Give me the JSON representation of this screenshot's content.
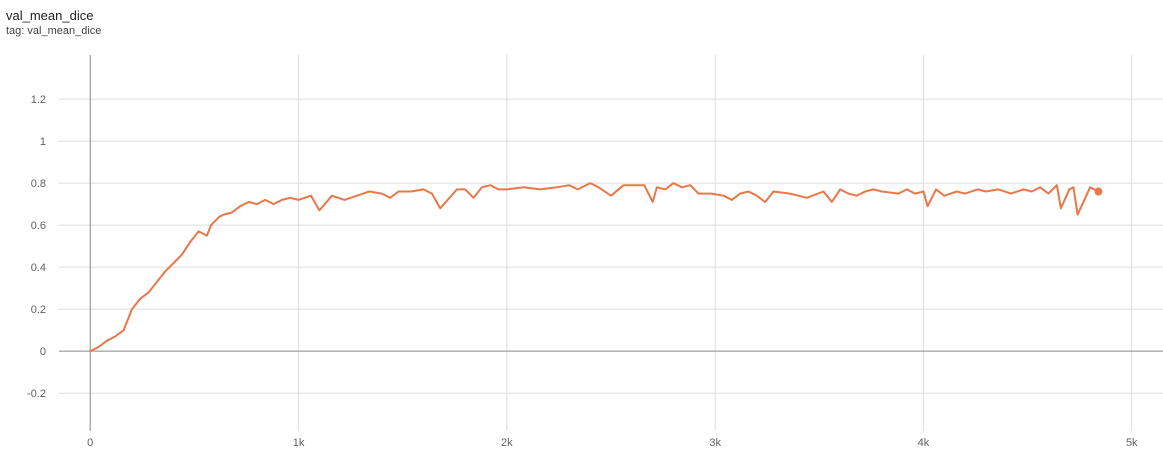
{
  "header": {
    "title": "val_mean_dice",
    "tag": "tag: val_mean_dice"
  },
  "colors": {
    "series": "#e8784a",
    "grid": "#dddddd",
    "zero_axis": "#888888",
    "text": "#616161"
  },
  "chart_data": {
    "type": "line",
    "title": "val_mean_dice",
    "xlabel": "",
    "ylabel": "",
    "xlim": [
      -150,
      5150
    ],
    "ylim": [
      -0.38,
      1.41
    ],
    "x_ticks": [
      0,
      1000,
      2000,
      3000,
      4000,
      5000
    ],
    "x_tick_labels": [
      "0",
      "1k",
      "2k",
      "3k",
      "4k",
      "5k"
    ],
    "y_ticks": [
      -0.2,
      0,
      0.2,
      0.4,
      0.6,
      0.8,
      1,
      1.2
    ],
    "y_tick_labels": [
      "-0.2",
      "0",
      "0.2",
      "0.4",
      "0.6",
      "0.8",
      "1",
      "1.2"
    ],
    "grid": true,
    "legend": "none",
    "last_point_marker": true,
    "series": [
      {
        "x": [
          0,
          40,
          80,
          120,
          160,
          200,
          240,
          280,
          320,
          360,
          400,
          440,
          480,
          520,
          560,
          580,
          600,
          620,
          640,
          680,
          720,
          760,
          800,
          840,
          880,
          920,
          960,
          1000,
          1060,
          1100,
          1160,
          1220,
          1280,
          1340,
          1400,
          1440,
          1480,
          1540,
          1600,
          1640,
          1680,
          1760,
          1800,
          1840,
          1880,
          1920,
          1960,
          2000,
          2080,
          2160,
          2240,
          2300,
          2340,
          2400,
          2440,
          2500,
          2560,
          2620,
          2660,
          2700,
          2720,
          2760,
          2800,
          2840,
          2880,
          2920,
          2980,
          3040,
          3080,
          3120,
          3160,
          3200,
          3240,
          3280,
          3360,
          3440,
          3520,
          3560,
          3600,
          3640,
          3680,
          3720,
          3760,
          3800,
          3880,
          3920,
          3960,
          4000,
          4020,
          4060,
          4100,
          4160,
          4200,
          4260,
          4300,
          4360,
          4420,
          4480,
          4520,
          4560,
          4600,
          4640,
          4660,
          4700,
          4720,
          4740,
          4800,
          4840
        ],
        "y": [
          0,
          0.02,
          0.05,
          0.07,
          0.1,
          0.2,
          0.25,
          0.28,
          0.33,
          0.38,
          0.42,
          0.46,
          0.52,
          0.57,
          0.55,
          0.6,
          0.62,
          0.64,
          0.65,
          0.66,
          0.69,
          0.71,
          0.7,
          0.72,
          0.7,
          0.72,
          0.73,
          0.72,
          0.74,
          0.67,
          0.74,
          0.72,
          0.74,
          0.76,
          0.75,
          0.73,
          0.76,
          0.76,
          0.77,
          0.75,
          0.68,
          0.77,
          0.77,
          0.73,
          0.78,
          0.79,
          0.77,
          0.77,
          0.78,
          0.77,
          0.78,
          0.79,
          0.77,
          0.8,
          0.78,
          0.74,
          0.79,
          0.79,
          0.79,
          0.71,
          0.78,
          0.77,
          0.8,
          0.78,
          0.79,
          0.75,
          0.75,
          0.74,
          0.72,
          0.75,
          0.76,
          0.74,
          0.71,
          0.76,
          0.75,
          0.73,
          0.76,
          0.71,
          0.77,
          0.75,
          0.74,
          0.76,
          0.77,
          0.76,
          0.75,
          0.77,
          0.75,
          0.76,
          0.69,
          0.77,
          0.74,
          0.76,
          0.75,
          0.77,
          0.76,
          0.77,
          0.75,
          0.77,
          0.76,
          0.78,
          0.75,
          0.79,
          0.68,
          0.77,
          0.78,
          0.65,
          0.78,
          0.76
        ]
      }
    ]
  }
}
